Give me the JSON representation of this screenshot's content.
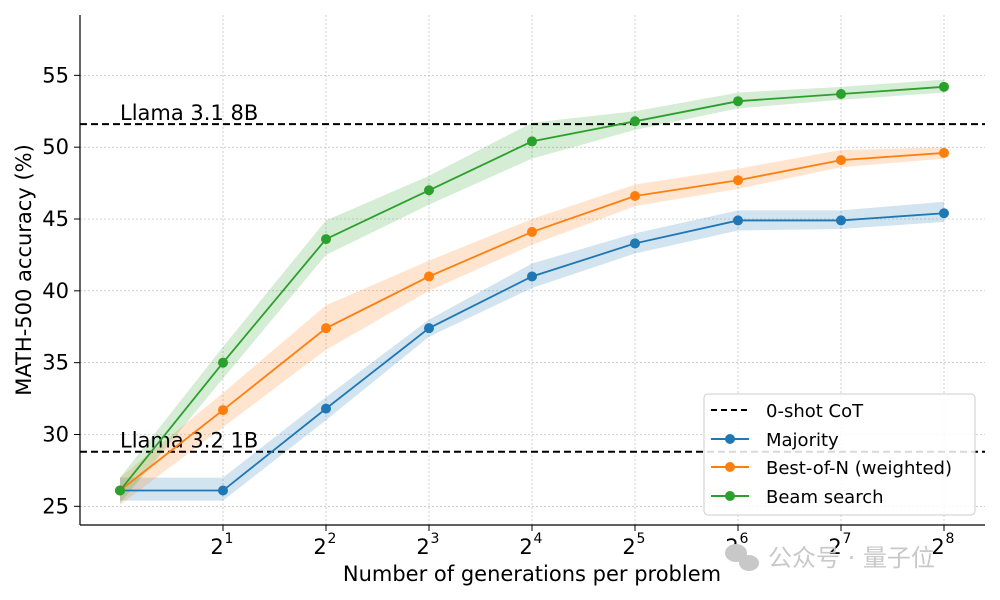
{
  "chart_data": {
    "type": "line",
    "xlabel": "Number of generations per problem",
    "ylabel": "MATH-500 accuracy (%)",
    "x_base": "2",
    "x": [
      0,
      1,
      2,
      3,
      4,
      5,
      6,
      7,
      8
    ],
    "x_tick_exponents": [
      "1",
      "2",
      "3",
      "4",
      "5",
      "6",
      "7",
      "8"
    ],
    "y_ticks": [
      25,
      30,
      35,
      40,
      45,
      50,
      55
    ],
    "ylim": [
      23.7,
      59.2
    ],
    "grid": true,
    "legend_position": "bottom-right",
    "reference_lines": [
      {
        "label": "Llama 3.1 8B",
        "value": 51.6
      },
      {
        "label": "Llama 3.2 1B",
        "value": 28.8
      }
    ],
    "reference_legend": "0-shot CoT",
    "series": [
      {
        "name": "Majority",
        "color": "#1f77b4",
        "values": [
          26.1,
          26.1,
          31.8,
          37.4,
          41.0,
          43.3,
          44.9,
          44.9,
          45.4
        ],
        "band_low": [
          25.4,
          25.4,
          31.0,
          36.8,
          40.2,
          42.6,
          44.2,
          44.3,
          44.8
        ],
        "band_high": [
          27.0,
          27.0,
          32.6,
          38.0,
          41.9,
          44.0,
          45.6,
          45.6,
          46.2
        ]
      },
      {
        "name": "Best-of-N (weighted)",
        "color": "#ff7f0e",
        "values": [
          26.1,
          31.7,
          37.4,
          41.0,
          44.1,
          46.6,
          47.7,
          49.1,
          49.6
        ],
        "band_low": [
          25.1,
          30.5,
          35.9,
          40.0,
          43.2,
          45.9,
          47.1,
          48.6,
          49.2
        ],
        "band_high": [
          27.0,
          32.9,
          39.0,
          42.1,
          45.0,
          47.4,
          48.5,
          49.8,
          50.0
        ]
      },
      {
        "name": "Beam search",
        "color": "#2ca02c",
        "values": [
          26.1,
          35.0,
          43.6,
          47.0,
          50.4,
          51.8,
          53.2,
          53.7,
          54.2
        ],
        "band_low": [
          25.2,
          33.9,
          42.5,
          46.0,
          49.2,
          51.2,
          52.7,
          53.3,
          53.8
        ],
        "band_high": [
          27.0,
          36.1,
          44.9,
          48.0,
          51.7,
          52.5,
          53.8,
          54.2,
          54.7
        ]
      }
    ]
  },
  "watermark": {
    "text": "公众号 · 量子位"
  }
}
